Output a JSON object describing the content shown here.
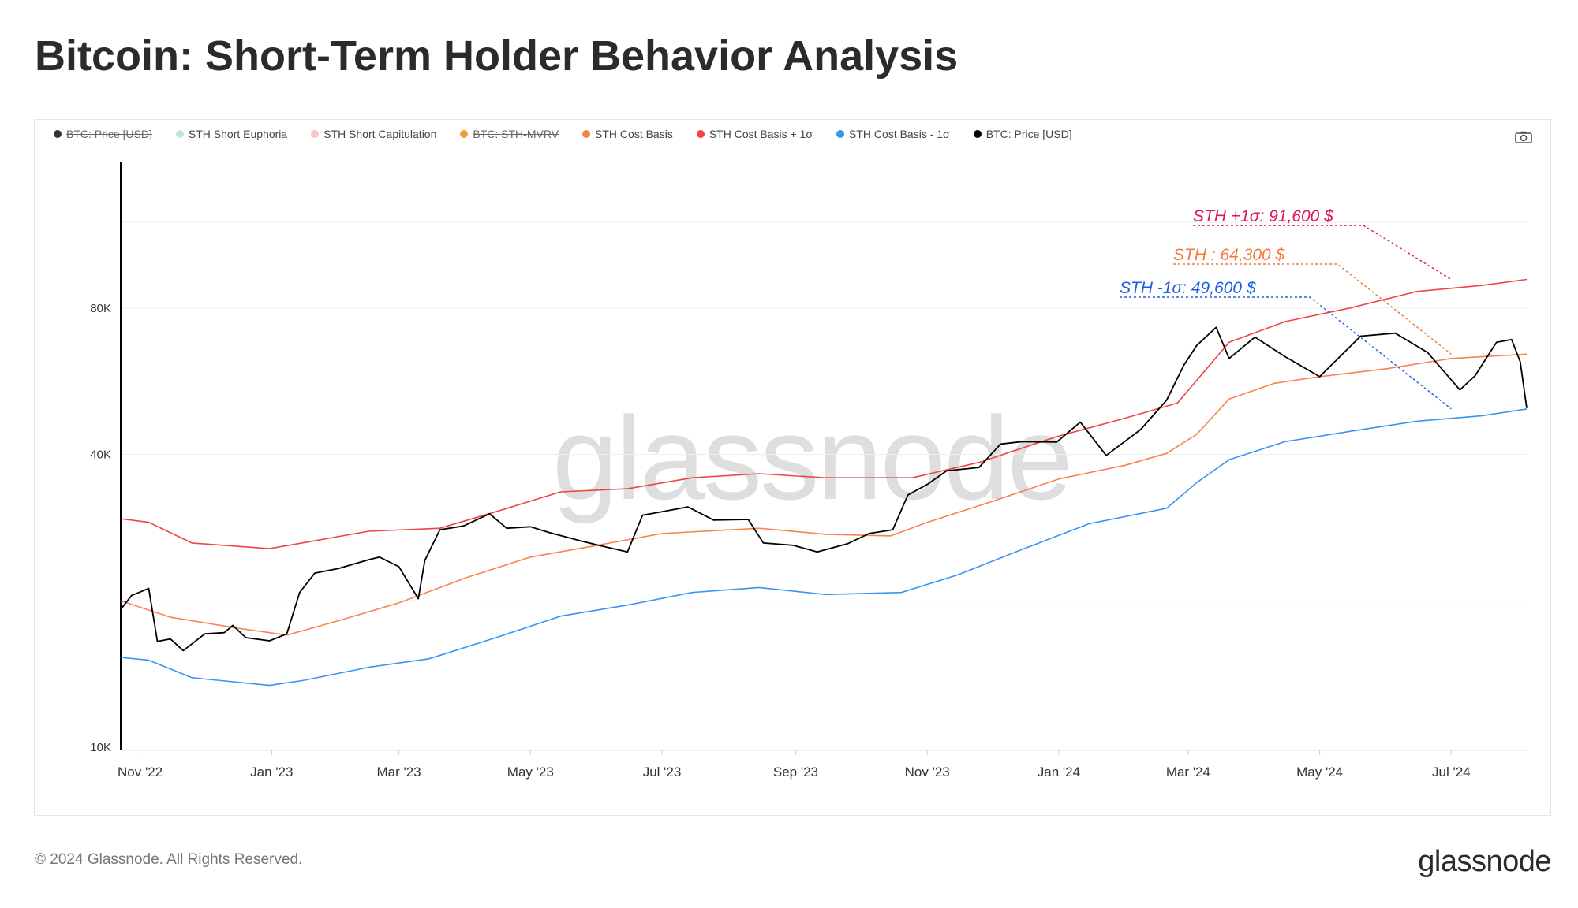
{
  "title": "Bitcoin: Short-Term Holder Behavior Analysis",
  "legend": [
    {
      "label": "BTC: Price [USD]",
      "color": "#333333",
      "active": false
    },
    {
      "label": "STH Short Euphoria",
      "color": "#bfe8cf",
      "active": true
    },
    {
      "label": "STH Short Capitulation",
      "color": "#f7c6c6",
      "active": true
    },
    {
      "label": "BTC: STH-MVRV",
      "color": "#f39c3c",
      "active": false
    },
    {
      "label": "STH Cost Basis",
      "color": "#f7834f",
      "active": true
    },
    {
      "label": "STH Cost Basis + 1σ",
      "color": "#ef4444",
      "active": true
    },
    {
      "label": "STH Cost Basis - 1σ",
      "color": "#3b93f0",
      "active": true
    },
    {
      "label": "BTC: Price [USD]",
      "color": "#000000",
      "active": true
    }
  ],
  "watermark": "glassnode",
  "footer": "© 2024 Glassnode. All Rights Reserved.",
  "brand": "glassnode",
  "colors": {
    "price": "#000000",
    "cost_basis": "#f7834f",
    "cost_plus": "#ef4444",
    "cost_minus": "#3b93f0",
    "annot_plus": "#e0115f",
    "annot_mid": "#f07a3c",
    "annot_minus": "#1f5fe0"
  },
  "chart_data": {
    "type": "line",
    "y_scale": "log",
    "ylim": [
      10000,
      160000
    ],
    "yticks": [
      {
        "value": 10000,
        "label": "10K"
      },
      {
        "value": 40000,
        "label": "40K"
      },
      {
        "value": 80000,
        "label": "80K"
      }
    ],
    "xlim": [
      "2022-10-23",
      "2024-08-05"
    ],
    "xticks": [
      {
        "date": "2022-11-01",
        "label": "Nov '22"
      },
      {
        "date": "2023-01-01",
        "label": "Jan '23"
      },
      {
        "date": "2023-03-01",
        "label": "Mar '23"
      },
      {
        "date": "2023-05-01",
        "label": "May '23"
      },
      {
        "date": "2023-07-01",
        "label": "Jul '23"
      },
      {
        "date": "2023-09-01",
        "label": "Sep '23"
      },
      {
        "date": "2023-11-01",
        "label": "Nov '23"
      },
      {
        "date": "2024-01-01",
        "label": "Jan '24"
      },
      {
        "date": "2024-03-01",
        "label": "Mar '24"
      },
      {
        "date": "2024-05-01",
        "label": "May '24"
      },
      {
        "date": "2024-07-01",
        "label": "Jul '24"
      }
    ],
    "series": [
      {
        "name": "BTC: Price [USD]",
        "key": "price",
        "points": [
          [
            "2022-10-23",
            19200
          ],
          [
            "2022-10-28",
            20500
          ],
          [
            "2022-11-05",
            21200
          ],
          [
            "2022-11-09",
            16500
          ],
          [
            "2022-11-15",
            16700
          ],
          [
            "2022-11-21",
            15800
          ],
          [
            "2022-12-01",
            17100
          ],
          [
            "2022-12-10",
            17200
          ],
          [
            "2022-12-14",
            17800
          ],
          [
            "2022-12-20",
            16800
          ],
          [
            "2022-12-31",
            16550
          ],
          [
            "2023-01-08",
            17100
          ],
          [
            "2023-01-14",
            20800
          ],
          [
            "2023-01-21",
            22800
          ],
          [
            "2023-02-01",
            23300
          ],
          [
            "2023-02-15",
            24300
          ],
          [
            "2023-02-20",
            24600
          ],
          [
            "2023-03-01",
            23500
          ],
          [
            "2023-03-10",
            20200
          ],
          [
            "2023-03-13",
            24200
          ],
          [
            "2023-03-20",
            28000
          ],
          [
            "2023-03-31",
            28500
          ],
          [
            "2023-04-12",
            30200
          ],
          [
            "2023-04-20",
            28200
          ],
          [
            "2023-05-01",
            28400
          ],
          [
            "2023-05-10",
            27600
          ],
          [
            "2023-05-25",
            26500
          ],
          [
            "2023-06-05",
            25800
          ],
          [
            "2023-06-15",
            25200
          ],
          [
            "2023-06-22",
            30000
          ],
          [
            "2023-07-01",
            30500
          ],
          [
            "2023-07-13",
            31200
          ],
          [
            "2023-07-25",
            29300
          ],
          [
            "2023-08-10",
            29400
          ],
          [
            "2023-08-17",
            26300
          ],
          [
            "2023-08-31",
            26000
          ],
          [
            "2023-09-11",
            25200
          ],
          [
            "2023-09-25",
            26200
          ],
          [
            "2023-10-05",
            27500
          ],
          [
            "2023-10-16",
            28000
          ],
          [
            "2023-10-23",
            33000
          ],
          [
            "2023-11-01",
            34700
          ],
          [
            "2023-11-10",
            37000
          ],
          [
            "2023-11-25",
            37600
          ],
          [
            "2023-12-05",
            42000
          ],
          [
            "2023-12-15",
            42500
          ],
          [
            "2023-12-31",
            42400
          ],
          [
            "2024-01-11",
            46600
          ],
          [
            "2024-01-23",
            39800
          ],
          [
            "2024-02-08",
            45000
          ],
          [
            "2024-02-20",
            51700
          ],
          [
            "2024-02-28",
            61000
          ],
          [
            "2024-03-05",
            67000
          ],
          [
            "2024-03-14",
            73000
          ],
          [
            "2024-03-20",
            63000
          ],
          [
            "2024-04-01",
            69700
          ],
          [
            "2024-04-15",
            63500
          ],
          [
            "2024-05-01",
            57800
          ],
          [
            "2024-05-20",
            70000
          ],
          [
            "2024-06-05",
            71000
          ],
          [
            "2024-06-20",
            64800
          ],
          [
            "2024-07-05",
            54300
          ],
          [
            "2024-07-12",
            58000
          ],
          [
            "2024-07-22",
            68000
          ],
          [
            "2024-07-29",
            68900
          ],
          [
            "2024-08-02",
            62000
          ],
          [
            "2024-08-05",
            49800
          ]
        ]
      },
      {
        "name": "STH Cost Basis",
        "key": "cost_basis",
        "points": [
          [
            "2022-10-23",
            20000
          ],
          [
            "2022-11-15",
            18500
          ],
          [
            "2022-12-15",
            17600
          ],
          [
            "2023-01-08",
            17000
          ],
          [
            "2023-02-01",
            18200
          ],
          [
            "2023-03-01",
            19800
          ],
          [
            "2023-04-01",
            22300
          ],
          [
            "2023-05-01",
            24600
          ],
          [
            "2023-06-01",
            26000
          ],
          [
            "2023-07-01",
            27500
          ],
          [
            "2023-08-15",
            28200
          ],
          [
            "2023-09-15",
            27400
          ],
          [
            "2023-10-15",
            27200
          ],
          [
            "2023-11-01",
            29000
          ],
          [
            "2023-12-01",
            32000
          ],
          [
            "2024-01-01",
            35600
          ],
          [
            "2024-02-01",
            38000
          ],
          [
            "2024-02-20",
            40200
          ],
          [
            "2024-03-05",
            44000
          ],
          [
            "2024-03-20",
            52000
          ],
          [
            "2024-04-10",
            56000
          ],
          [
            "2024-05-01",
            57800
          ],
          [
            "2024-06-01",
            60000
          ],
          [
            "2024-07-01",
            63000
          ],
          [
            "2024-08-05",
            64300
          ]
        ]
      },
      {
        "name": "STH Cost Basis + 1σ",
        "key": "cost_plus",
        "points": [
          [
            "2022-10-23",
            29500
          ],
          [
            "2022-11-05",
            29000
          ],
          [
            "2022-11-25",
            26300
          ],
          [
            "2022-12-31",
            25600
          ],
          [
            "2023-01-15",
            26300
          ],
          [
            "2023-02-15",
            27800
          ],
          [
            "2023-03-20",
            28200
          ],
          [
            "2023-04-15",
            30500
          ],
          [
            "2023-05-15",
            33500
          ],
          [
            "2023-06-15",
            34000
          ],
          [
            "2023-07-15",
            35800
          ],
          [
            "2023-08-15",
            36500
          ],
          [
            "2023-09-15",
            35800
          ],
          [
            "2023-10-25",
            35800
          ],
          [
            "2023-11-25",
            38500
          ],
          [
            "2023-12-31",
            43500
          ],
          [
            "2024-02-01",
            47500
          ],
          [
            "2024-02-25",
            51000
          ],
          [
            "2024-03-20",
            68000
          ],
          [
            "2024-04-15",
            75000
          ],
          [
            "2024-05-15",
            80000
          ],
          [
            "2024-06-15",
            86500
          ],
          [
            "2024-07-15",
            89000
          ],
          [
            "2024-08-05",
            91600
          ]
        ]
      },
      {
        "name": "STH Cost Basis - 1σ",
        "key": "cost_minus",
        "points": [
          [
            "2022-10-23",
            15300
          ],
          [
            "2022-11-05",
            15100
          ],
          [
            "2022-11-25",
            13900
          ],
          [
            "2022-12-31",
            13400
          ],
          [
            "2023-01-15",
            13700
          ],
          [
            "2023-02-15",
            14600
          ],
          [
            "2023-03-15",
            15200
          ],
          [
            "2023-04-15",
            16800
          ],
          [
            "2023-05-15",
            18600
          ],
          [
            "2023-06-15",
            19600
          ],
          [
            "2023-07-15",
            20800
          ],
          [
            "2023-08-15",
            21300
          ],
          [
            "2023-09-15",
            20600
          ],
          [
            "2023-10-20",
            20800
          ],
          [
            "2023-11-15",
            22600
          ],
          [
            "2023-12-15",
            25500
          ],
          [
            "2024-01-15",
            28800
          ],
          [
            "2024-02-20",
            31000
          ],
          [
            "2024-03-05",
            35000
          ],
          [
            "2024-03-20",
            39000
          ],
          [
            "2024-04-15",
            42500
          ],
          [
            "2024-05-15",
            44600
          ],
          [
            "2024-06-15",
            46800
          ],
          [
            "2024-07-15",
            48000
          ],
          [
            "2024-08-05",
            49600
          ]
        ]
      }
    ],
    "annotations": [
      {
        "text": "STH +1σ: 91,600 $",
        "key": "plus",
        "target": [
          "2024-07-01",
          91600
        ]
      },
      {
        "text": "STH : 64,300 $",
        "key": "mid",
        "target": [
          "2024-07-01",
          64300
        ]
      },
      {
        "text": "STH -1σ: 49,600 $",
        "key": "minus",
        "target": [
          "2024-07-01",
          49600
        ]
      }
    ]
  }
}
